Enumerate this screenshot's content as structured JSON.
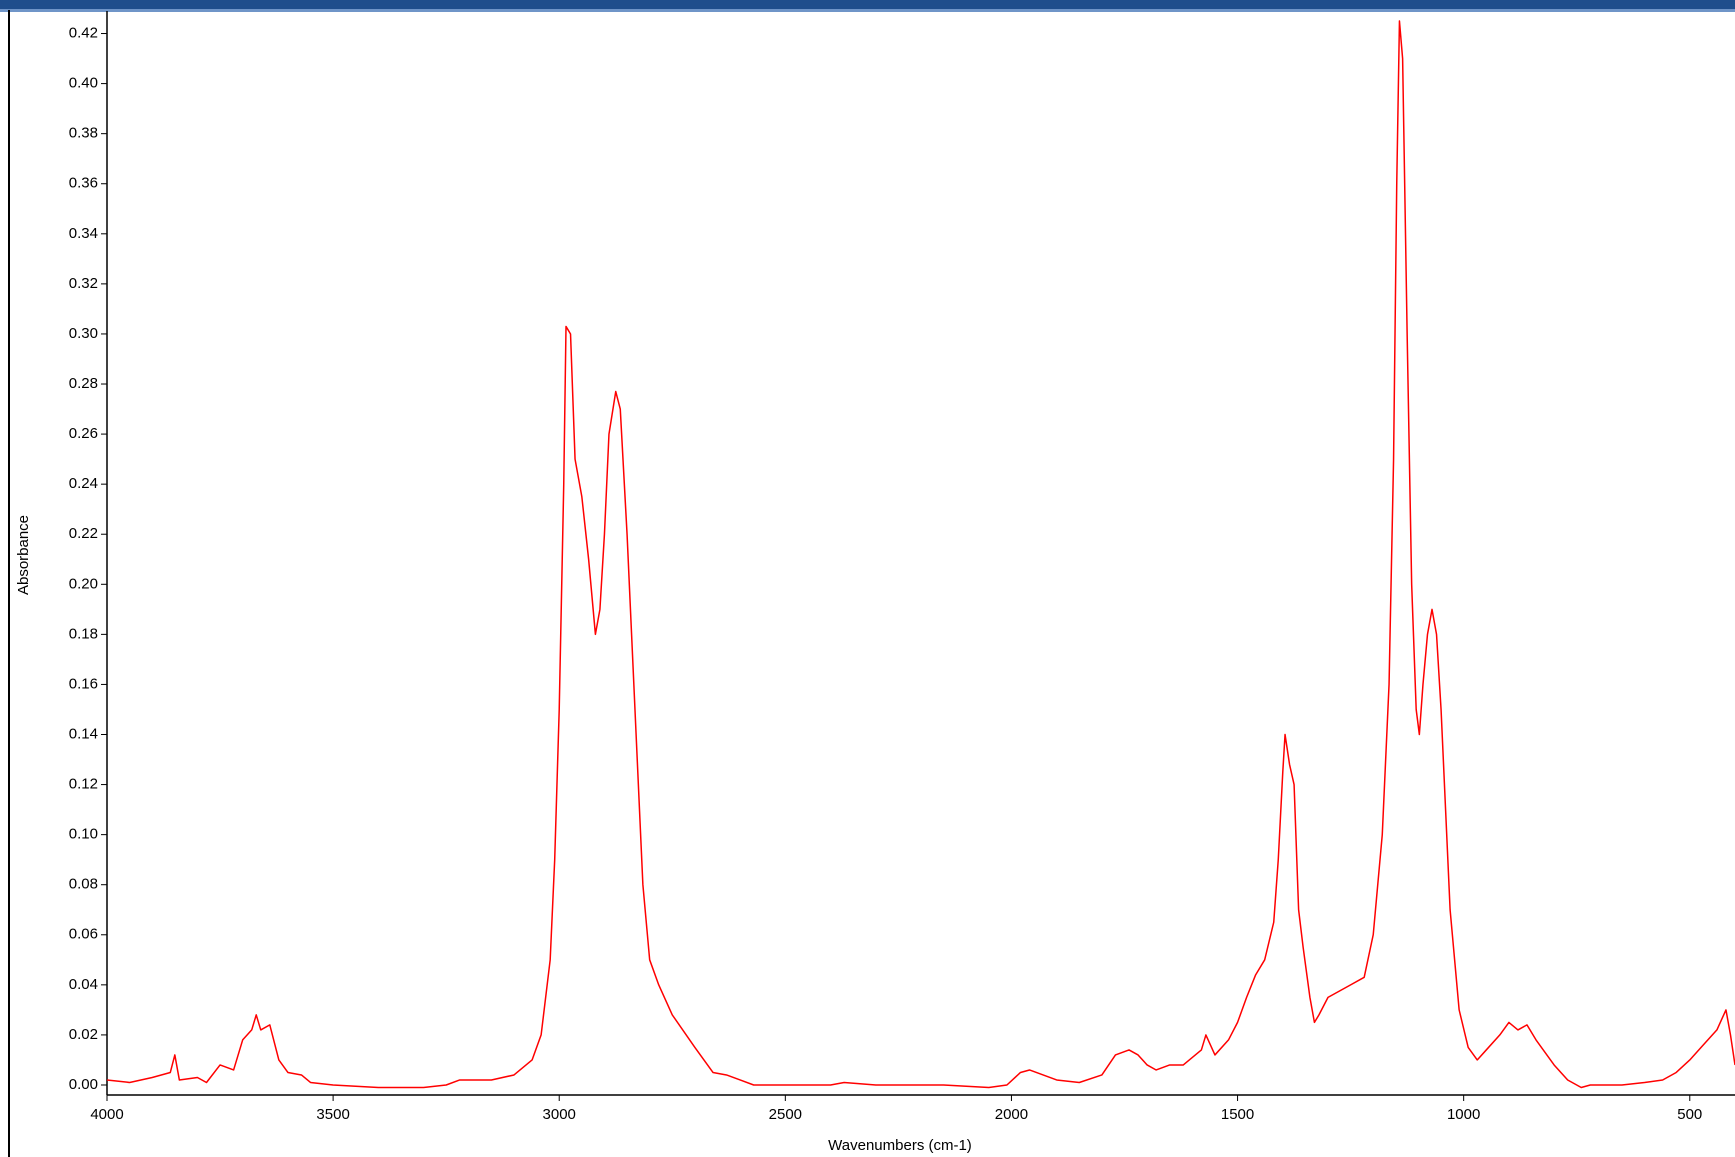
{
  "chart_data": {
    "type": "line",
    "x_label": "Wavenumbers (cm-1)",
    "y_label": "Absorbance",
    "color": "#ff0000",
    "x": [
      4000,
      3950,
      3900,
      3860,
      3850,
      3840,
      3800,
      3780,
      3750,
      3720,
      3700,
      3680,
      3670,
      3660,
      3640,
      3620,
      3600,
      3570,
      3550,
      3500,
      3400,
      3300,
      3250,
      3220,
      3150,
      3100,
      3060,
      3040,
      3020,
      3010,
      3000,
      2990,
      2985,
      2975,
      2965,
      2950,
      2935,
      2920,
      2910,
      2900,
      2890,
      2875,
      2865,
      2850,
      2830,
      2815,
      2800,
      2780,
      2750,
      2700,
      2660,
      2630,
      2600,
      2570,
      2500,
      2400,
      2370,
      2300,
      2200,
      2150,
      2050,
      2010,
      1980,
      1960,
      1900,
      1850,
      1800,
      1770,
      1740,
      1720,
      1700,
      1680,
      1650,
      1620,
      1580,
      1570,
      1550,
      1520,
      1500,
      1480,
      1460,
      1440,
      1420,
      1410,
      1400,
      1395,
      1385,
      1375,
      1365,
      1355,
      1340,
      1330,
      1320,
      1300,
      1280,
      1250,
      1220,
      1200,
      1180,
      1165,
      1155,
      1148,
      1142,
      1135,
      1125,
      1115,
      1105,
      1098,
      1090,
      1080,
      1070,
      1060,
      1050,
      1040,
      1030,
      1010,
      990,
      970,
      950,
      920,
      900,
      880,
      860,
      840,
      800,
      770,
      740,
      720,
      650,
      600,
      560,
      530,
      500,
      470,
      440,
      420,
      410,
      400
    ],
    "values": [
      0.002,
      0.001,
      0.003,
      0.005,
      0.012,
      0.002,
      0.003,
      0.001,
      0.008,
      0.006,
      0.018,
      0.022,
      0.028,
      0.022,
      0.024,
      0.01,
      0.005,
      0.004,
      0.001,
      0.0,
      -0.001,
      -0.001,
      0.0,
      0.002,
      0.002,
      0.004,
      0.01,
      0.02,
      0.05,
      0.09,
      0.15,
      0.24,
      0.303,
      0.3,
      0.25,
      0.235,
      0.21,
      0.18,
      0.19,
      0.22,
      0.26,
      0.277,
      0.27,
      0.22,
      0.14,
      0.08,
      0.05,
      0.04,
      0.028,
      0.015,
      0.005,
      0.004,
      0.002,
      0.0,
      0.0,
      0.0,
      0.001,
      0.0,
      0.0,
      0.0,
      -0.001,
      0.0,
      0.005,
      0.006,
      0.002,
      0.001,
      0.004,
      0.012,
      0.014,
      0.012,
      0.008,
      0.006,
      0.008,
      0.008,
      0.014,
      0.02,
      0.012,
      0.018,
      0.025,
      0.035,
      0.044,
      0.05,
      0.065,
      0.09,
      0.125,
      0.14,
      0.128,
      0.12,
      0.07,
      0.055,
      0.035,
      0.025,
      0.028,
      0.035,
      0.037,
      0.04,
      0.043,
      0.06,
      0.1,
      0.16,
      0.25,
      0.36,
      0.425,
      0.41,
      0.3,
      0.2,
      0.15,
      0.14,
      0.16,
      0.18,
      0.19,
      0.18,
      0.15,
      0.11,
      0.07,
      0.03,
      0.015,
      0.01,
      0.014,
      0.02,
      0.025,
      0.022,
      0.024,
      0.018,
      0.008,
      0.002,
      -0.001,
      0.0,
      0.0,
      0.001,
      0.002,
      0.005,
      0.01,
      0.016,
      0.022,
      0.03,
      0.02,
      0.008
    ],
    "xlim": [
      4000,
      400
    ],
    "xticks": [
      4000,
      3500,
      3000,
      2500,
      2000,
      1500,
      1000,
      500
    ],
    "ylim": [
      -0.004,
      0.429
    ],
    "yticks": [
      {
        "value": 0,
        "label": "0.00"
      },
      {
        "value": 0.02,
        "label": "0.02"
      },
      {
        "value": 0.04,
        "label": "0.04"
      },
      {
        "value": 0.06,
        "label": "0.06"
      },
      {
        "value": 0.08,
        "label": "0.08"
      },
      {
        "value": 0.1,
        "label": "0.10"
      },
      {
        "value": 0.12,
        "label": "0.12"
      },
      {
        "value": 0.14,
        "label": "0.14"
      },
      {
        "value": 0.16,
        "label": "0.16"
      },
      {
        "value": 0.18,
        "label": "0.18"
      },
      {
        "value": 0.2,
        "label": "0.20"
      },
      {
        "value": 0.22,
        "label": "0.22"
      },
      {
        "value": 0.24,
        "label": "0.24"
      },
      {
        "value": 0.26,
        "label": "0.26"
      },
      {
        "value": 0.28,
        "label": "0.28"
      },
      {
        "value": 0.3,
        "label": "0.30"
      },
      {
        "value": 0.32,
        "label": "0.32"
      },
      {
        "value": 0.34,
        "label": "0.34"
      },
      {
        "value": 0.36,
        "label": "0.36"
      },
      {
        "value": 0.38,
        "label": "0.38"
      },
      {
        "value": 0.4,
        "label": "0.40"
      },
      {
        "value": 0.42,
        "label": "0.42"
      }
    ],
    "grid": false
  }
}
